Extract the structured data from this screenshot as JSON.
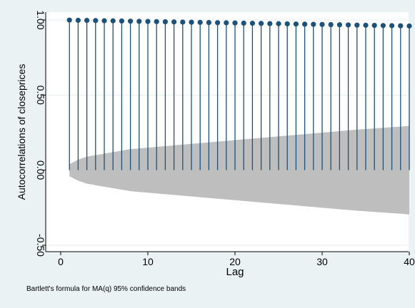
{
  "chart_data": {
    "type": "line",
    "title": "",
    "xlabel": "Lag",
    "ylabel": "Autocorrelations of closeprices",
    "note": "Bartlett's formula for MA(q) 95% confidence bands",
    "xlim": [
      0,
      40
    ],
    "ylim": [
      -0.5,
      1.0
    ],
    "x_ticks": [
      0,
      10,
      20,
      30,
      40
    ],
    "y_ticks": [
      -0.5,
      0.0,
      0.5,
      1.0
    ],
    "x_tick_labels": [
      "0",
      "10",
      "20",
      "30",
      "40"
    ],
    "y_tick_labels": [
      "-0.50",
      "0.00",
      "0.50",
      "1.00"
    ],
    "grid": true,
    "legend": "none",
    "lags": [
      1,
      2,
      3,
      4,
      5,
      6,
      7,
      8,
      9,
      10,
      11,
      12,
      13,
      14,
      15,
      16,
      17,
      18,
      19,
      20,
      21,
      22,
      23,
      24,
      25,
      26,
      27,
      28,
      29,
      30,
      31,
      32,
      33,
      34,
      35,
      36,
      37,
      38,
      39,
      40
    ],
    "acf": [
      0.999,
      0.998,
      0.997,
      0.996,
      0.995,
      0.994,
      0.993,
      0.992,
      0.991,
      0.99,
      0.989,
      0.988,
      0.987,
      0.986,
      0.985,
      0.984,
      0.983,
      0.982,
      0.981,
      0.98,
      0.979,
      0.978,
      0.977,
      0.976,
      0.975,
      0.974,
      0.973,
      0.972,
      0.971,
      0.97,
      0.969,
      0.968,
      0.967,
      0.966,
      0.965,
      0.964,
      0.963,
      0.962,
      0.961,
      0.96
    ],
    "conf_band_upper": [
      0.04,
      0.07,
      0.09,
      0.1,
      0.11,
      0.12,
      0.13,
      0.14,
      0.145,
      0.15,
      0.155,
      0.16,
      0.165,
      0.17,
      0.175,
      0.18,
      0.185,
      0.19,
      0.195,
      0.2,
      0.205,
      0.21,
      0.215,
      0.22,
      0.225,
      0.23,
      0.235,
      0.24,
      0.245,
      0.25,
      0.255,
      0.26,
      0.265,
      0.27,
      0.274,
      0.278,
      0.282,
      0.286,
      0.29,
      0.295
    ],
    "colors": {
      "page_bg": "#eaf2f3",
      "plot_bg": "#ffffff",
      "stem": "#1c5179",
      "marker": "#1c5179",
      "band": "#bebebe",
      "grid": "#e6eef0"
    }
  }
}
